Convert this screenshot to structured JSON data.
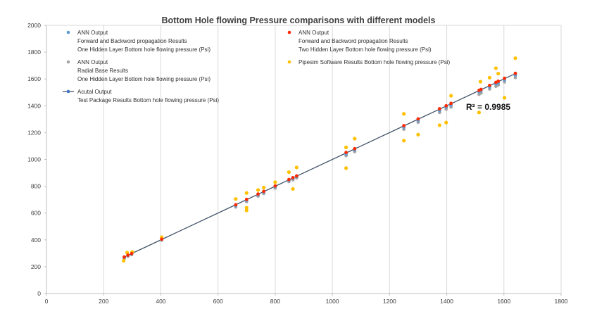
{
  "chart_data": {
    "type": "scatter",
    "title": "Bottom Hole flowing Pressure comparisons with different models",
    "xlabel": "",
    "ylabel": "",
    "xlim": [
      0,
      1800
    ],
    "ylim": [
      0,
      2000
    ],
    "x_ticks": [
      0,
      200,
      400,
      600,
      800,
      1000,
      1200,
      1400,
      1600,
      1800
    ],
    "y_ticks": [
      0,
      200,
      400,
      600,
      800,
      1000,
      1200,
      1400,
      1600,
      1800,
      2000
    ],
    "grid": "vertical",
    "annotation": "R² = 0.9985",
    "colors": {
      "ann_one_hidden": "#5b9bd5",
      "ann_two_hidden": "#ff2a00",
      "ann_radial": "#a5a5a5",
      "pipesim": "#ffc000",
      "actual": "#44546a",
      "actual_marker": "#4472c4",
      "grid": "#d9d9d9",
      "axis": "#bfbfbf"
    },
    "series": [
      {
        "id": "ann_one_hidden",
        "name_lines": [
          "ANN Output",
          "Forward and Backword propagation Results",
          "One Hidden Layer  Bottom hole flowing pressure (Psi)"
        ],
        "kind": "marker",
        "x": [
          272,
          285,
          298,
          403,
          662,
          700,
          740,
          760,
          800,
          848,
          862,
          875,
          1048,
          1078,
          1250,
          1300,
          1375,
          1398,
          1415,
          1513,
          1520,
          1550,
          1572,
          1580,
          1602,
          1640
        ],
        "y": [
          268,
          284,
          296,
          403,
          656,
          696,
          736,
          756,
          796,
          844,
          858,
          872,
          1040,
          1070,
          1240,
          1290,
          1365,
          1390,
          1405,
          1505,
          1512,
          1540,
          1563,
          1570,
          1593,
          1628
        ]
      },
      {
        "id": "ann_two_hidden",
        "name_lines": [
          "ANN Output",
          "Forward and Backword propagation Results",
          "Two Hidden Layer  Bottom hole flowing pressure (Psi)"
        ],
        "kind": "marker",
        "x": [
          272,
          285,
          298,
          403,
          662,
          700,
          740,
          760,
          800,
          848,
          862,
          875,
          1048,
          1078,
          1250,
          1300,
          1375,
          1398,
          1415,
          1513,
          1520,
          1550,
          1572,
          1580,
          1602,
          1640
        ],
        "y": [
          272,
          286,
          298,
          405,
          662,
          702,
          742,
          762,
          802,
          850,
          864,
          877,
          1052,
          1080,
          1252,
          1302,
          1378,
          1400,
          1418,
          1515,
          1522,
          1552,
          1575,
          1583,
          1605,
          1642
        ]
      },
      {
        "id": "ann_radial",
        "name_lines": [
          "ANN Output",
          "Radial Base Results",
          "One Hidden Layer  Bottom hole flowing pressure (Psi)"
        ],
        "kind": "marker",
        "x": [
          272,
          285,
          298,
          403,
          662,
          700,
          740,
          760,
          800,
          848,
          862,
          875,
          1048,
          1078,
          1250,
          1300,
          1375,
          1398,
          1415,
          1513,
          1520,
          1550,
          1572,
          1580,
          1602,
          1640
        ],
        "y": [
          262,
          278,
          290,
          398,
          645,
          685,
          726,
          746,
          786,
          835,
          848,
          862,
          1028,
          1058,
          1225,
          1277,
          1350,
          1375,
          1390,
          1485,
          1495,
          1525,
          1545,
          1555,
          1578,
          1610
        ]
      },
      {
        "id": "pipesim",
        "name_lines": [
          "Pipesim Software Results Bottom hole flowing pressure (Psi)"
        ],
        "kind": "marker",
        "x": [
          270,
          282,
          300,
          403,
          662,
          700,
          700,
          700,
          740,
          760,
          800,
          848,
          862,
          875,
          1048,
          1048,
          1078,
          1250,
          1250,
          1300,
          1375,
          1398,
          1415,
          1513,
          1518,
          1550,
          1572,
          1580,
          1602,
          1640
        ],
        "y": [
          245,
          305,
          310,
          420,
          705,
          750,
          640,
          620,
          772,
          790,
          830,
          905,
          780,
          940,
          1090,
          935,
          1155,
          1340,
          1140,
          1185,
          1255,
          1275,
          1475,
          1350,
          1580,
          1610,
          1680,
          1640,
          1460,
          1755
        ]
      },
      {
        "id": "actual",
        "name_lines": [
          "Acutal Output",
          "Test Package Results  Bottom hole flowing pressure (Psi)"
        ],
        "kind": "line",
        "x": [
          272,
          285,
          298,
          403,
          662,
          700,
          740,
          760,
          800,
          848,
          862,
          875,
          1048,
          1078,
          1250,
          1300,
          1375,
          1398,
          1415,
          1513,
          1520,
          1550,
          1572,
          1580,
          1602,
          1640
        ],
        "y": [
          272,
          285,
          298,
          403,
          662,
          700,
          740,
          760,
          800,
          848,
          862,
          875,
          1048,
          1078,
          1250,
          1300,
          1375,
          1398,
          1415,
          1513,
          1520,
          1550,
          1572,
          1580,
          1602,
          1640
        ]
      }
    ]
  }
}
